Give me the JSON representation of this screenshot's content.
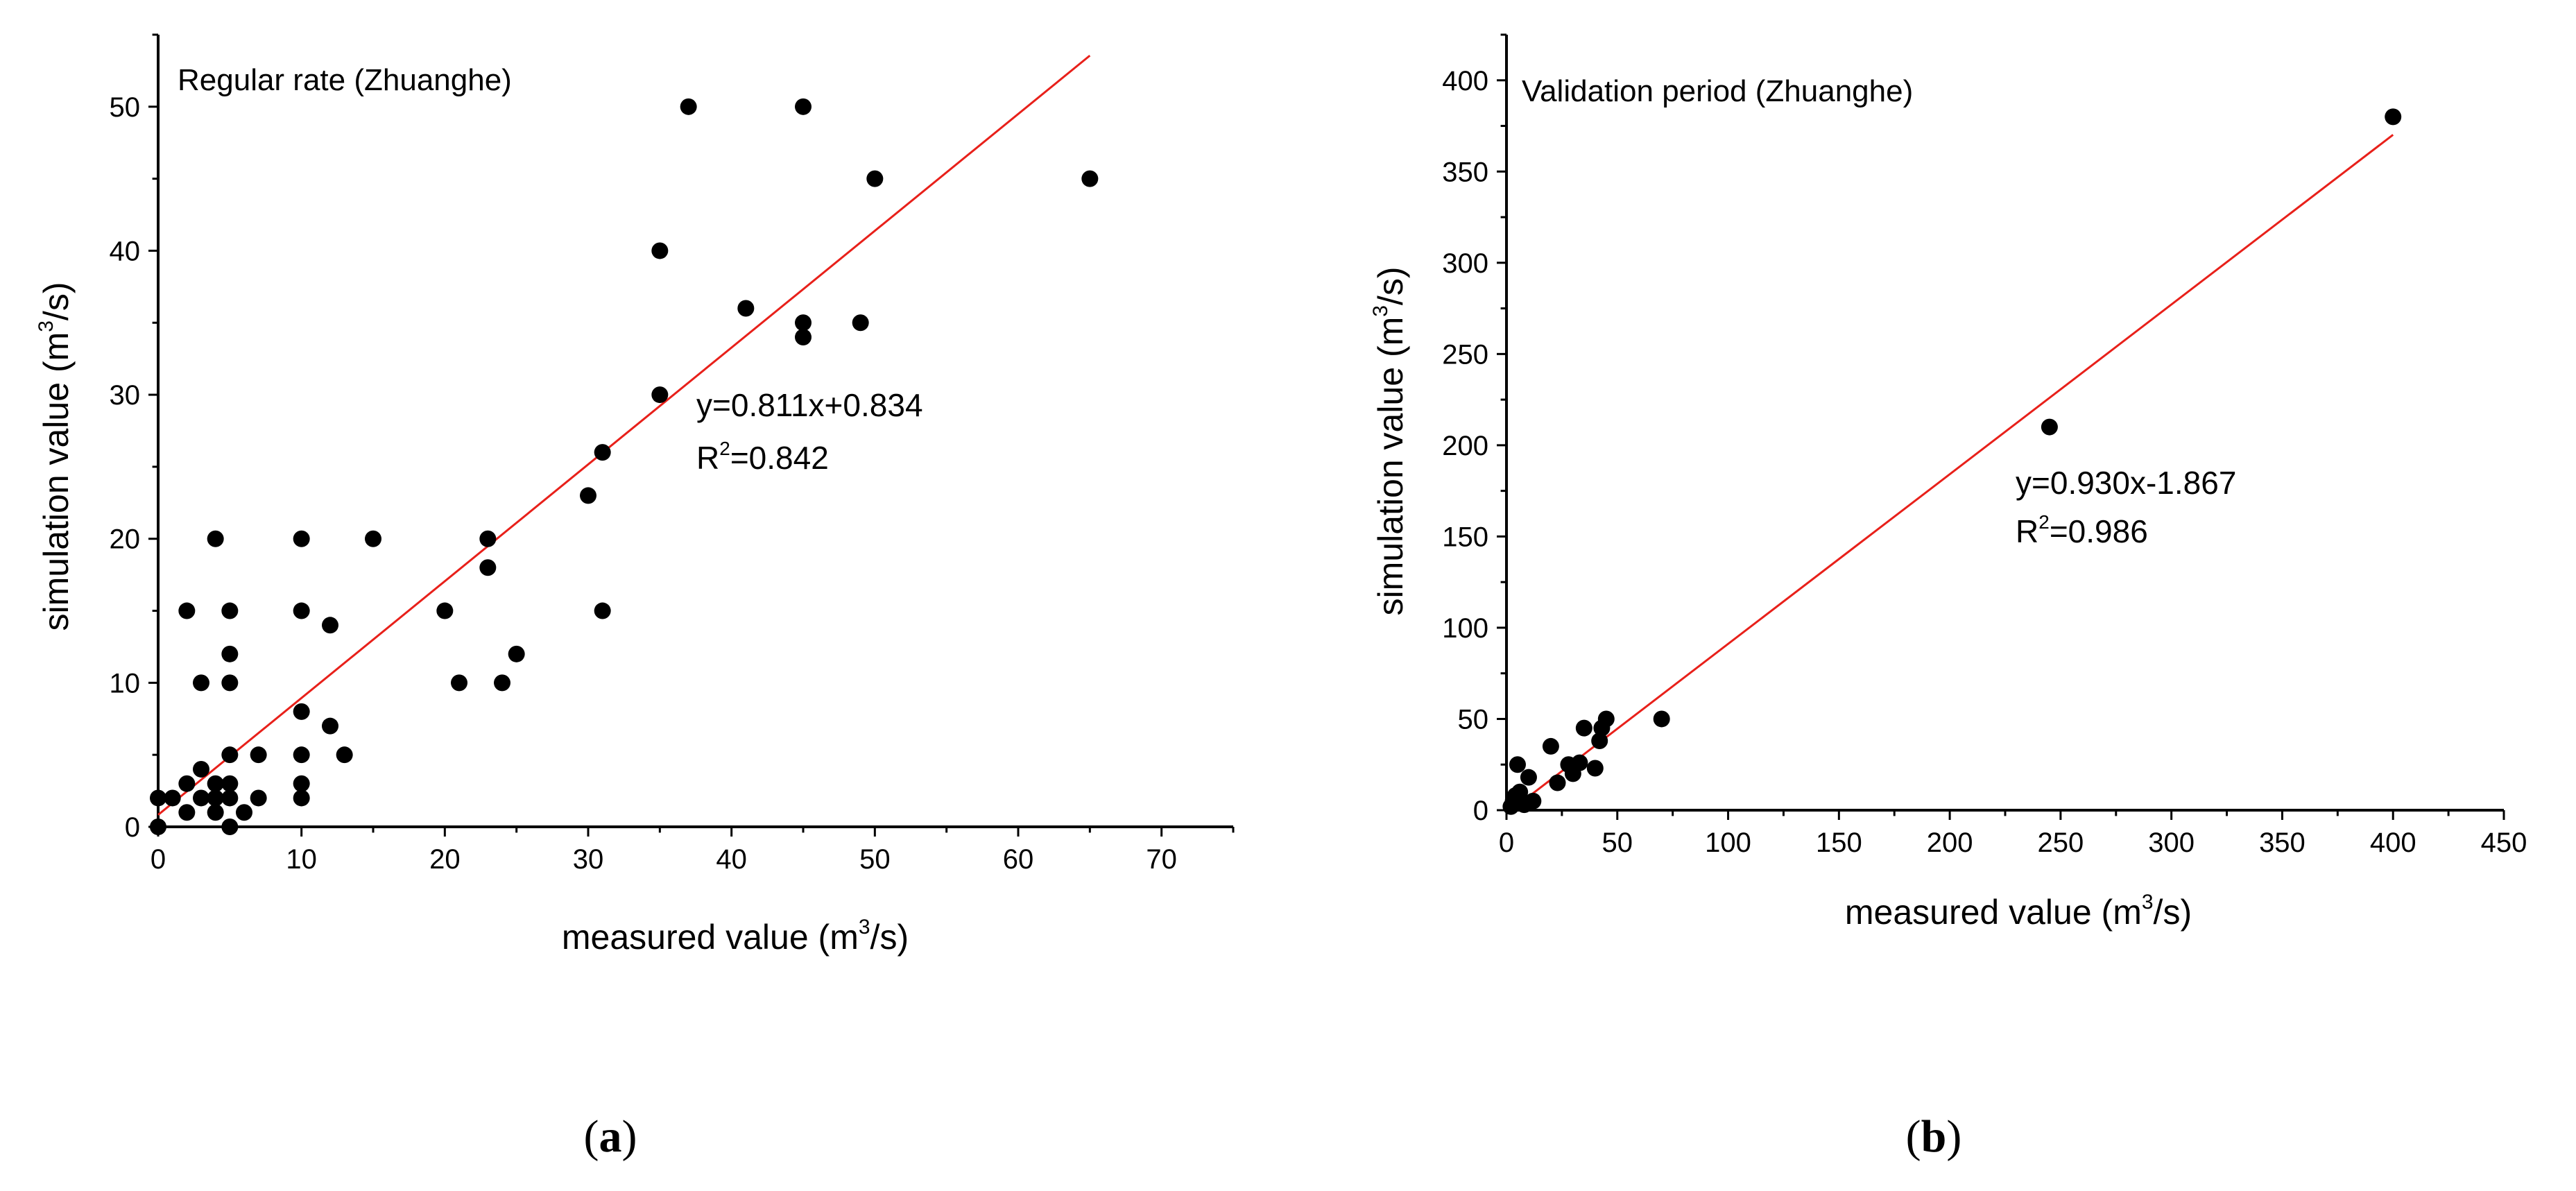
{
  "chart_data": [
    {
      "type": "scatter",
      "panel": "(a)",
      "panel_letter": "a",
      "title": "Regular rate (Zhuanghe)",
      "xlabel": "measured value (m",
      "xlabel_unit_sup": "3",
      "xlabel_end": "/s)",
      "ylabel": "simulation value (m",
      "ylabel_unit_sup": "3",
      "ylabel_end": "/s)",
      "xlim": [
        0,
        75
      ],
      "ylim": [
        0,
        55
      ],
      "xticks": [
        0,
        10,
        20,
        30,
        40,
        50,
        60,
        70
      ],
      "yticks": [
        0,
        10,
        20,
        30,
        40,
        50
      ],
      "equation": "y=0.811x+0.834",
      "r2_label": "R",
      "r2_sup": "2",
      "r2_value": "=0.842",
      "fit": {
        "slope": 0.811,
        "intercept": 0.834,
        "x_range": [
          0,
          65
        ]
      },
      "points": [
        [
          0,
          0
        ],
        [
          0,
          2
        ],
        [
          1,
          2
        ],
        [
          2,
          15
        ],
        [
          2,
          3
        ],
        [
          2,
          1
        ],
        [
          3,
          10
        ],
        [
          3,
          4
        ],
        [
          3,
          2
        ],
        [
          4,
          20
        ],
        [
          4,
          3
        ],
        [
          4,
          2
        ],
        [
          4,
          1
        ],
        [
          5,
          15
        ],
        [
          5,
          12
        ],
        [
          5,
          10
        ],
        [
          5,
          5
        ],
        [
          5,
          3
        ],
        [
          5,
          2
        ],
        [
          5,
          0
        ],
        [
          6,
          1
        ],
        [
          7,
          5
        ],
        [
          7,
          2
        ],
        [
          10,
          20
        ],
        [
          10,
          15
        ],
        [
          10,
          8
        ],
        [
          10,
          5
        ],
        [
          10,
          3
        ],
        [
          10,
          2
        ],
        [
          12,
          14
        ],
        [
          12,
          7
        ],
        [
          13,
          5
        ],
        [
          15,
          20
        ],
        [
          20,
          15
        ],
        [
          21,
          10
        ],
        [
          23,
          20
        ],
        [
          23,
          18
        ],
        [
          24,
          10
        ],
        [
          25,
          12
        ],
        [
          30,
          23
        ],
        [
          31,
          26
        ],
        [
          31,
          15
        ],
        [
          35,
          40
        ],
        [
          35,
          30
        ],
        [
          37,
          50
        ],
        [
          41,
          36
        ],
        [
          45,
          50
        ],
        [
          45,
          35
        ],
        [
          45,
          34
        ],
        [
          49,
          35
        ],
        [
          50,
          45
        ],
        [
          65,
          45
        ]
      ]
    },
    {
      "type": "scatter",
      "panel": "(b)",
      "panel_letter": "b",
      "title": "Validation period (Zhuanghe)",
      "xlabel": "measured value (m",
      "xlabel_unit_sup": "3",
      "xlabel_end": "/s)",
      "ylabel": "simulation value (m",
      "ylabel_unit_sup": "3",
      "ylabel_end": "/s)",
      "xlim": [
        0,
        450
      ],
      "ylim": [
        0,
        425
      ],
      "xticks": [
        0,
        50,
        100,
        150,
        200,
        250,
        300,
        350,
        400,
        450
      ],
      "yticks": [
        0,
        50,
        100,
        150,
        200,
        250,
        300,
        350,
        400
      ],
      "equation": "y=0.930x-1.867",
      "r2_label": "R",
      "r2_sup": "2",
      "r2_value": "=0.986",
      "fit": {
        "slope": 0.93,
        "intercept": -1.867,
        "x_range": [
          0,
          400
        ]
      },
      "points": [
        [
          2,
          2
        ],
        [
          3,
          5
        ],
        [
          4,
          8
        ],
        [
          5,
          25
        ],
        [
          6,
          10
        ],
        [
          8,
          3
        ],
        [
          10,
          18
        ],
        [
          12,
          5
        ],
        [
          20,
          35
        ],
        [
          23,
          15
        ],
        [
          28,
          25
        ],
        [
          30,
          20
        ],
        [
          33,
          26
        ],
        [
          35,
          45
        ],
        [
          40,
          23
        ],
        [
          42,
          38
        ],
        [
          43,
          45
        ],
        [
          45,
          50
        ],
        [
          70,
          50
        ],
        [
          245,
          210
        ],
        [
          400,
          380
        ]
      ]
    }
  ]
}
